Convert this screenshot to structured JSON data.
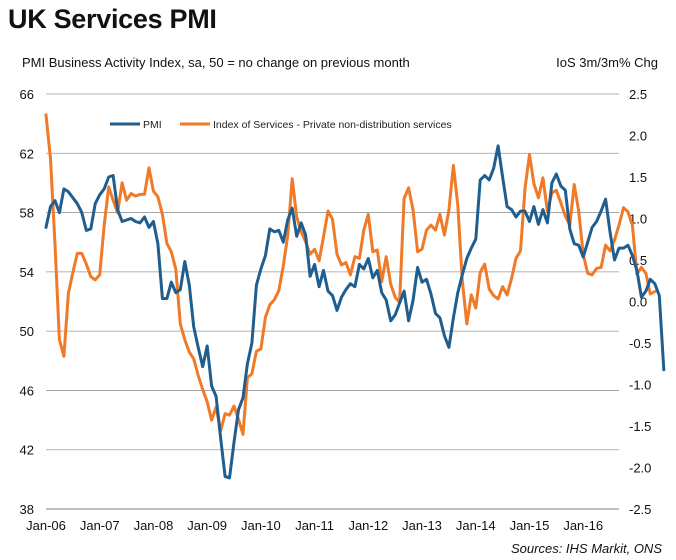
{
  "title": "UK Services PMI",
  "subtitle": "PMI Business Activity Index, sa, 50 = no change on previous month",
  "right_axis_label": "IoS 3m/3m% Chg",
  "source": "Sources: IHS Markit, ONS",
  "colors": {
    "pmi": "#1f5e8e",
    "ios": "#f07a28",
    "grid": "#9a9a9a"
  },
  "chart_data": {
    "type": "line",
    "title": "UK Services PMI",
    "subtitle": "PMI Business Activity Index, sa, 50 = no change on previous month",
    "x_start": "2006-01",
    "x_end": "2016-08",
    "x_ticks": [
      "Jan-06",
      "Jan-07",
      "Jan-08",
      "Jan-09",
      "Jan-10",
      "Jan-11",
      "Jan-12",
      "Jan-13",
      "Jan-14",
      "Jan-15",
      "Jan-16"
    ],
    "y_left": {
      "min": 38,
      "max": 66,
      "ticks": [
        38,
        42,
        46,
        50,
        54,
        58,
        62,
        66
      ]
    },
    "y_right": {
      "label": "IoS 3m/3m% Chg",
      "min": -2.5,
      "max": 2.5,
      "ticks": [
        "2.5",
        "2.0",
        "1.5",
        "1.0",
        "0.5",
        "0.0",
        "-0.5",
        "-1.0",
        "-1.5",
        "-2.0",
        "-2.5"
      ]
    },
    "grid": true,
    "legend_position": "top-left",
    "series": [
      {
        "name": "PMI",
        "axis": "left",
        "values": [
          57.0,
          58.4,
          58.8,
          58.0,
          59.6,
          59.4,
          59.0,
          58.6,
          58.0,
          56.8,
          56.9,
          58.6,
          59.2,
          59.6,
          60.4,
          60.5,
          58.2,
          57.4,
          57.5,
          57.6,
          57.4,
          57.3,
          57.7,
          57.0,
          57.4,
          55.9,
          52.2,
          52.2,
          53.3,
          52.6,
          52.8,
          54.7,
          53.1,
          50.3,
          48.9,
          47.6,
          49.0,
          46.3,
          45.6,
          42.8,
          40.2,
          40.1,
          42.5,
          44.7,
          45.5,
          47.8,
          49.2,
          53.1,
          54.2,
          55.1,
          56.9,
          56.7,
          56.8,
          56.0,
          57.5,
          58.3,
          56.4,
          57.3,
          56.5,
          53.7,
          54.5,
          53.0,
          54.1,
          52.7,
          52.4,
          51.4,
          52.3,
          52.8,
          53.2,
          53.0,
          54.5,
          54.2,
          54.9,
          53.6,
          54.1,
          52.6,
          52.1,
          50.7,
          51.1,
          51.9,
          52.7,
          50.7,
          52.1,
          54.3,
          53.3,
          53.5,
          52.5,
          51.2,
          50.9,
          49.7,
          48.9,
          50.9,
          52.6,
          53.8,
          54.9,
          55.6,
          56.2,
          60.2,
          60.5,
          60.2,
          61.0,
          62.5,
          60.4,
          58.4,
          58.2,
          57.7,
          58.1,
          58.1,
          57.4,
          58.4,
          57.2,
          58.2,
          57.3,
          60.0,
          60.6,
          59.8,
          59.5,
          56.9,
          55.9,
          55.8,
          55.0,
          56.0,
          57.0,
          57.4,
          58.1,
          58.9,
          56.7,
          54.8,
          55.6,
          55.6,
          55.8,
          55.1,
          54.1,
          52.3,
          52.7,
          53.5,
          53.2,
          52.4,
          47.4
        ]
      },
      {
        "name": "Index of Services - Private non-distribution services",
        "axis": "right",
        "values": [
          2.25,
          1.72,
          0.69,
          -0.46,
          -0.66,
          0.1,
          0.35,
          0.58,
          0.58,
          0.45,
          0.3,
          0.26,
          0.32,
          0.92,
          1.38,
          1.22,
          1.07,
          1.43,
          1.22,
          1.3,
          1.27,
          1.29,
          1.29,
          1.61,
          1.33,
          1.26,
          1.05,
          0.7,
          0.6,
          0.39,
          -0.27,
          -0.46,
          -0.61,
          -0.69,
          -0.89,
          -1.06,
          -1.21,
          -1.43,
          -1.27,
          -1.56,
          -1.35,
          -1.37,
          -1.26,
          -1.42,
          -1.6,
          -0.92,
          -0.87,
          -0.6,
          -0.57,
          -0.19,
          -0.04,
          0.02,
          0.13,
          0.43,
          0.79,
          1.48,
          1.02,
          0.84,
          0.72,
          0.57,
          0.63,
          0.49,
          0.78,
          1.09,
          0.99,
          0.57,
          0.44,
          0.47,
          0.32,
          0.54,
          0.52,
          0.86,
          1.05,
          0.6,
          0.62,
          0.24,
          0.54,
          0.21,
          0.05,
          -0.01,
          1.24,
          1.37,
          1.1,
          0.6,
          0.63,
          0.86,
          0.92,
          0.86,
          1.05,
          0.8,
          1.1,
          1.64,
          1.16,
          0.25,
          -0.27,
          0.08,
          -0.08,
          0.35,
          0.45,
          0.15,
          0.07,
          0.03,
          0.18,
          0.08,
          0.28,
          0.52,
          0.61,
          1.36,
          1.77,
          1.42,
          1.25,
          1.49,
          1.09,
          1.31,
          1.34,
          1.19,
          1.03,
          0.92,
          1.41,
          1.09,
          0.57,
          0.34,
          0.32,
          0.4,
          0.41,
          0.68,
          0.61,
          0.74,
          0.92,
          1.13,
          1.08,
          0.92,
          0.33,
          0.41,
          0.34,
          0.09,
          0.12
        ]
      }
    ]
  }
}
